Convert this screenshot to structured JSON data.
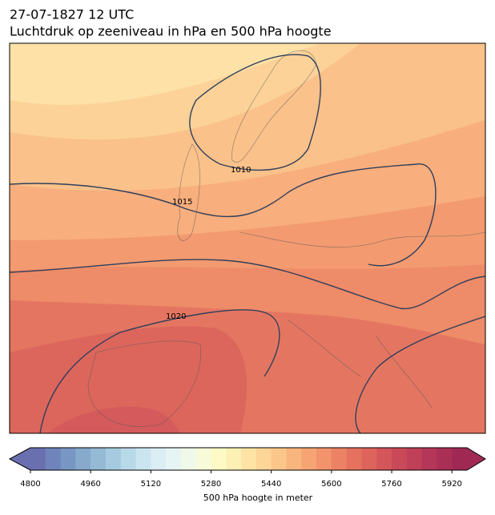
{
  "title": "27-07-1827 12 UTC",
  "subtitle": "Luchtdruk op zeeniveau in hPa en 500 hPa hoogte",
  "isobar_labels": [
    1010,
    1015,
    1020
  ],
  "colorbar": {
    "label": "500 hPa hoogte in meter",
    "lim": [
      4800,
      5960
    ],
    "ticks": [
      4800,
      4960,
      5120,
      5280,
      5440,
      5600,
      5760,
      5920
    ],
    "colors": [
      "#6a6fb0",
      "#6e84bb",
      "#7896c4",
      "#86a9cc",
      "#95bad5",
      "#a6cbe0",
      "#b8d9e8",
      "#cae5ef",
      "#daeef4",
      "#e6f4f3",
      "#eff8e9",
      "#f7fbd9",
      "#fdfac6",
      "#fdf0b4",
      "#fde3a4",
      "#fcd597",
      "#fbc68a",
      "#f9b57e",
      "#f6a473",
      "#f2936b",
      "#ec8264",
      "#e5725f",
      "#dd635b",
      "#d4555a",
      "#ca4959",
      "#c03f59",
      "#b43658",
      "#a92f57",
      "#a02954"
    ]
  }
}
